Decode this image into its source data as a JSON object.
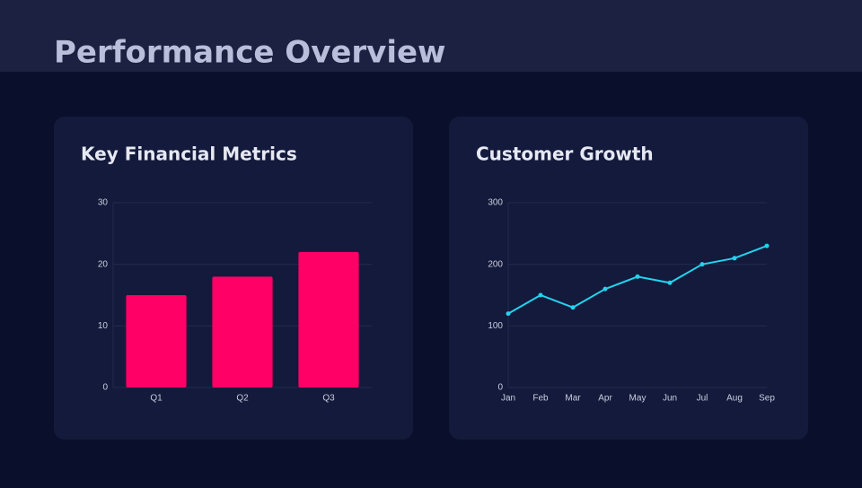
{
  "page_title": "Performance Overview",
  "chart_data": [
    {
      "type": "bar",
      "title": "Key Financial Metrics",
      "categories": [
        "Q1",
        "Q2",
        "Q3"
      ],
      "values": [
        15,
        18,
        22
      ],
      "color": "#ff0066",
      "ylim": [
        0,
        30
      ],
      "yticks": [
        0,
        10,
        20,
        30
      ],
      "grid": true
    },
    {
      "type": "line",
      "title": "Customer Growth",
      "categories": [
        "Jan",
        "Feb",
        "Mar",
        "Apr",
        "May",
        "Jun",
        "Jul",
        "Aug",
        "Sep"
      ],
      "values": [
        120,
        150,
        130,
        160,
        180,
        170,
        200,
        210,
        230
      ],
      "color": "#22d3ee",
      "ylim": [
        0,
        300
      ],
      "yticks": [
        0,
        100,
        200,
        300
      ],
      "grid": true
    }
  ]
}
